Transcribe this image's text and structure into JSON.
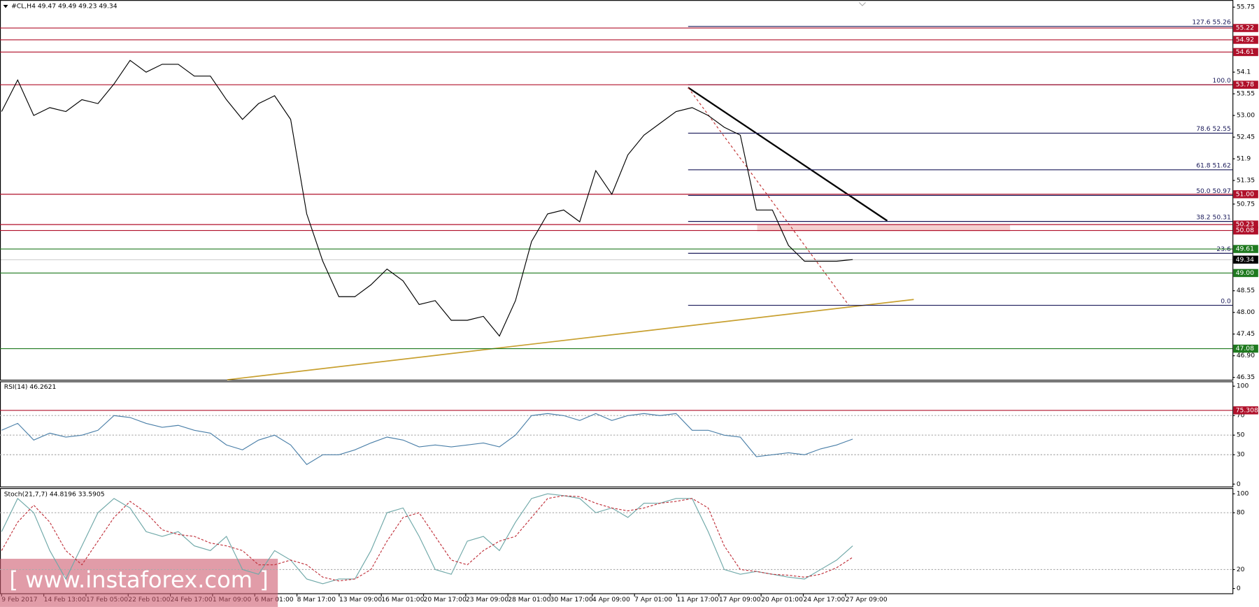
{
  "chart_data": [
    {
      "type": "line",
      "title": "#CL,H4 49.47 49.49 49.23 49.34",
      "color": "#000000",
      "values": [
        53.1,
        53.9,
        53.0,
        53.2,
        53.1,
        53.4,
        53.3,
        53.8,
        54.4,
        54.1,
        54.3,
        54.3,
        54.0,
        54.0,
        53.4,
        52.9,
        53.3,
        53.5,
        52.9,
        50.5,
        49.3,
        48.4,
        48.4,
        48.7,
        49.1,
        48.8,
        48.2,
        48.3,
        47.8,
        47.8,
        47.9,
        47.4,
        48.3,
        49.8,
        50.5,
        50.6,
        50.3,
        51.6,
        51.0,
        52.0,
        52.5,
        52.8,
        53.1,
        53.2,
        53.0,
        52.7,
        52.5,
        50.6,
        50.6,
        49.7,
        49.3,
        49.3,
        49.3,
        49.34
      ],
      "ylim": [
        46.29,
        55.93
      ],
      "yticks": [
        55.75,
        54.1,
        53.55,
        {
          "value": 53,
          "label": "53.00"
        },
        52.45,
        51.9,
        51.35,
        50.75,
        48.55,
        {
          "value": 48,
          "label": "48.00"
        },
        47.45,
        {
          "value": 46.9,
          "label": "46.90"
        },
        46.35
      ],
      "levels": [
        {
          "value": 55.22,
          "color": "#b0102a"
        },
        {
          "value": 54.92,
          "color": "#b0102a"
        },
        {
          "value": 54.61,
          "color": "#b0102a"
        },
        {
          "value": 53.78,
          "color": "#b0102a"
        },
        {
          "value": {
            "value": 51,
            "label": "51.00"
          },
          "color": "#b0102a"
        },
        {
          "value": 50.23,
          "color": "#b0102a"
        },
        {
          "value": 50.08,
          "color": "#b0102a"
        },
        {
          "value": 49.61,
          "color": "#1f7a1f"
        },
        {
          "value": 49.34,
          "color": "#000000"
        },
        {
          "value": {
            "value": 49,
            "label": "49.00"
          },
          "color": "#1f7a1f"
        },
        {
          "value": 47.08,
          "color": "#1f7a1f"
        }
      ],
      "fibonacci": [
        {
          "text": "127.6 55.26",
          "price": 55.26
        },
        {
          "text": "100.0",
          "price": 53.78
        },
        {
          "text": "78.6 52.55",
          "price": 52.55
        },
        {
          "text": "61.8 51.62",
          "price": 51.62
        },
        {
          "text": "50.0 50.97",
          "price": 50.97
        },
        {
          "text": "38.2 50.31",
          "price": 50.31
        },
        {
          "text": "23.6",
          "price": 49.5
        },
        {
          "text": "0.0",
          "price": 48.18
        }
      ],
      "xtick_labels": [
        "9 Feb 2017",
        "14 Feb 13:00",
        "17 Feb 05:00",
        "22 Feb 01:00",
        "24 Feb 17:00",
        "1 Mar 09:00",
        "6 Mar 01:00",
        "8 Mar 17:00",
        "13 Mar 09:00",
        "16 Mar 01:00",
        "20 Mar 17:00",
        "23 Mar 09:00",
        "28 Mar 01:00",
        "30 Mar 17:00",
        "4 Apr 09:00",
        "7 Apr 01:00",
        "11 Apr 17:00",
        "17 Apr 09:00",
        "20 Apr 01:00",
        "24 Apr 17:00",
        "27 Apr 09:00"
      ],
      "watermark": "[ www.instaforex.com ]"
    },
    {
      "type": "line",
      "title": "RSI(14) 46.2621",
      "color": "#4a7fa8",
      "values": [
        55,
        62,
        45,
        52,
        48,
        50,
        55,
        70,
        68,
        62,
        58,
        60,
        55,
        52,
        40,
        35,
        45,
        50,
        40,
        20,
        30,
        30,
        35,
        42,
        48,
        45,
        38,
        40,
        38,
        40,
        42,
        38,
        50,
        70,
        72,
        70,
        65,
        72,
        65,
        70,
        72,
        70,
        72,
        55,
        55,
        50,
        48,
        28,
        30,
        32,
        30,
        36,
        40,
        46
      ],
      "ylim": [
        -3.3,
        104.9
      ],
      "yticks": [
        100,
        70,
        50,
        30,
        0
      ],
      "grid_levels": [
        70,
        50,
        30
      ],
      "levels": [
        {
          "value": 75.3086,
          "color": "#b0102a"
        }
      ]
    },
    {
      "type": "stoch",
      "title": "Stoch(21,7,7) 44.8196 33.5905",
      "series": [
        {
          "color": "#6fa8a8",
          "dash": false,
          "values": [
            60,
            95,
            80,
            40,
            10,
            45,
            80,
            95,
            85,
            60,
            55,
            60,
            45,
            40,
            55,
            20,
            15,
            40,
            30,
            10,
            5,
            10,
            10,
            40,
            80,
            85,
            55,
            20,
            15,
            50,
            55,
            40,
            70,
            95,
            100,
            98,
            95,
            80,
            85,
            75,
            90,
            90,
            95,
            95,
            60,
            20,
            15,
            18,
            15,
            12,
            10,
            20,
            30,
            45
          ]
        },
        {
          "color": "#c0303a",
          "dash": true,
          "values": [
            40,
            70,
            88,
            70,
            40,
            25,
            50,
            75,
            92,
            80,
            62,
            57,
            55,
            48,
            45,
            40,
            25,
            25,
            30,
            25,
            12,
            8,
            10,
            20,
            50,
            75,
            80,
            55,
            30,
            25,
            40,
            50,
            55,
            75,
            95,
            98,
            97,
            90,
            85,
            82,
            85,
            90,
            92,
            95,
            85,
            45,
            20,
            18,
            15,
            14,
            12,
            15,
            22,
            33
          ]
        }
      ],
      "ylim": [
        -5.9,
        105.1
      ],
      "yticks": [
        100,
        80,
        20,
        0
      ],
      "grid_levels": [
        80,
        20
      ]
    }
  ]
}
